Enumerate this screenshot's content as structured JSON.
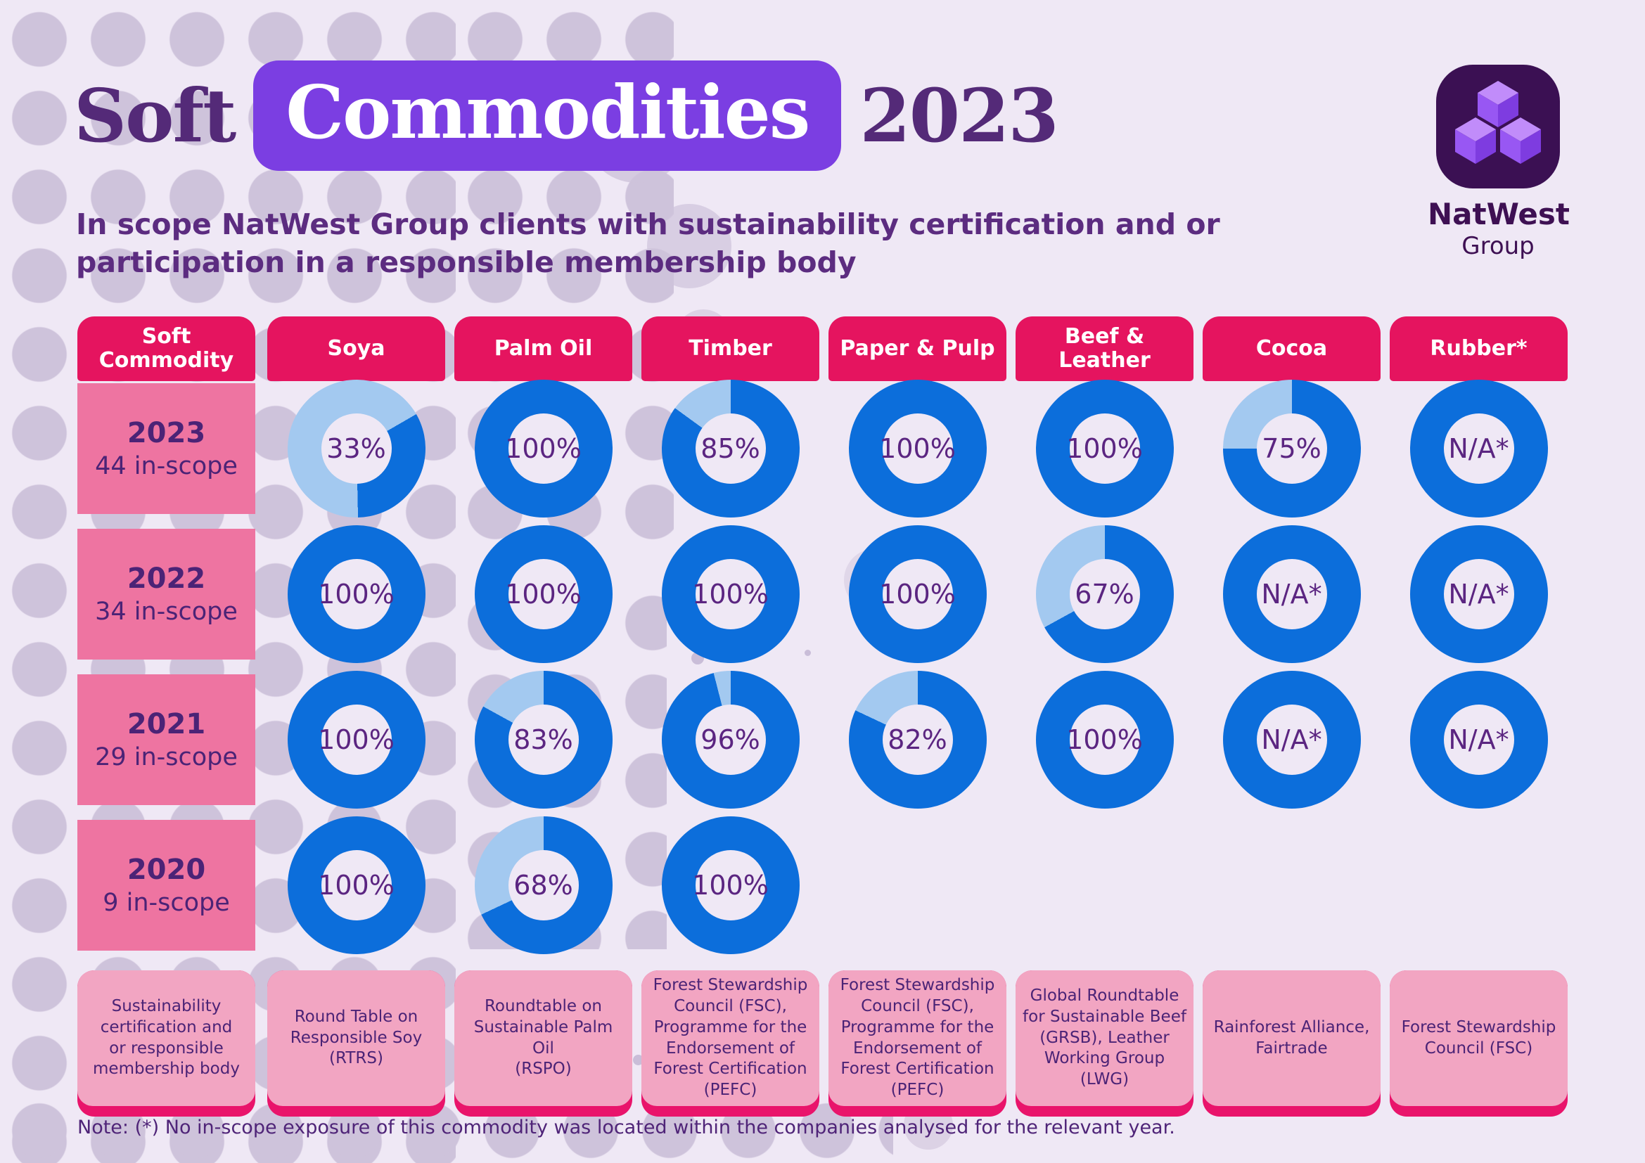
{
  "page": {
    "title_part1": "Soft",
    "title_highlight": "Commodities",
    "title_part2": "2023",
    "subtitle_lines": [
      "In scope NatWest Group clients with sustainability certification and or",
      "participation in a responsible membership body"
    ],
    "note": "Note: (*) No in-scope exposure of this commodity was located within the companies analysed for the relevant year."
  },
  "logo": {
    "brand": "NatWest",
    "sub": "Group"
  },
  "colors": {
    "accent_purple": "#7b3ee2",
    "header_pink": "#e5145f",
    "row_label_pink": "#ee74a1",
    "cert_box_pink": "#f2a5c2",
    "cert_bar_magenta": "#e9146b",
    "text_purple": "#4b2376"
  },
  "chart_data": {
    "type": "donut-grid",
    "unit": "%",
    "title": "Soft Commodities 2023",
    "row_header_title": "Soft\nCommodity",
    "first_column_footer": "Sustainability\ncertification and\nor responsible\nmembership body",
    "rows": [
      {
        "year": "2023",
        "label": "44 in-scope"
      },
      {
        "year": "2022",
        "label": "34 in-scope"
      },
      {
        "year": "2021",
        "label": "29 in-scope"
      },
      {
        "year": "2020",
        "label": "9 in-scope"
      }
    ],
    "columns": [
      {
        "label": "Soya",
        "certification": "Round Table on\nResponsible Soy\n(RTRS)",
        "values": [
          33,
          100,
          100,
          100
        ]
      },
      {
        "label": "Palm Oil",
        "certification": "Roundtable on\nSustainable Palm\nOil\n(RSPO)",
        "values": [
          100,
          100,
          83,
          68
        ]
      },
      {
        "label": "Timber",
        "certification": "Forest Stewardship\nCouncil (FSC),\nProgramme for the\nEndorsement of\nForest Certification\n(PEFC)",
        "values": [
          85,
          100,
          96,
          100
        ]
      },
      {
        "label": "Paper & Pulp",
        "certification": "Forest Stewardship\nCouncil (FSC),\nProgramme for the\nEndorsement of\nForest Certification\n(PEFC)",
        "values": [
          100,
          100,
          82,
          null
        ]
      },
      {
        "label": "Beef & Leather",
        "certification": "Global Roundtable\nfor Sustainable Beef\n(GRSB), Leather\nWorking Group\n(LWG)",
        "values": [
          100,
          67,
          100,
          null
        ]
      },
      {
        "label": "Cocoa",
        "certification": "Rainforest Alliance,\nFairtrade",
        "values": [
          75,
          "N/A*",
          "N/A*",
          null
        ]
      },
      {
        "label": "Rubber*",
        "certification": "Forest Stewardship\nCouncil (FSC)",
        "values": [
          "N/A*",
          "N/A*",
          "N/A*",
          null
        ]
      }
    ],
    "na_label": "N/A*",
    "colors": {
      "filled": "#0c6edb",
      "remainder": "#a3c9f0"
    },
    "layout_hints": {
      "fill_direction": "clockwise-from-top",
      "legend": "none",
      "rotation_overrides": {
        "Soya-2023": 60
      }
    }
  }
}
